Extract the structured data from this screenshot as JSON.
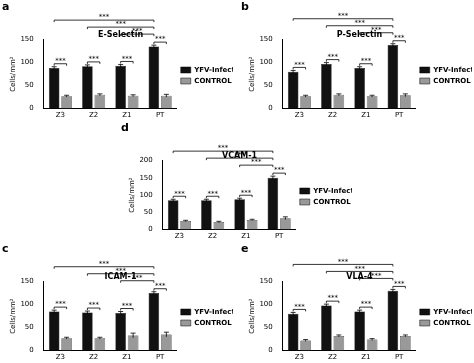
{
  "chart_data": [
    {
      "type": "bar",
      "panel": "a",
      "title": "E-Selectin",
      "y_label": "Cells/mm²",
      "categories": [
        "Z3",
        "Z2",
        "Z1",
        "PT"
      ],
      "series": [
        {
          "name": "YFV-Infected",
          "color": "#111111",
          "values": [
            88,
            92,
            93,
            135
          ],
          "errors": [
            3,
            3,
            3,
            3
          ]
        },
        {
          "name": "CONTROL",
          "color": "#999999",
          "values": [
            27,
            30,
            28,
            28
          ],
          "errors": [
            2,
            2,
            2,
            3
          ]
        }
      ],
      "ylim": [
        0,
        150
      ],
      "yticks": [
        0,
        50,
        100,
        150
      ],
      "legend": "right",
      "significance": [
        {
          "category": "Z3",
          "label": "***"
        },
        {
          "category": "Z2",
          "label": "***"
        },
        {
          "category": "Z1",
          "label": "***"
        },
        {
          "category": "PT",
          "label": "***"
        },
        {
          "from": "Z1",
          "to": "PT",
          "label": "***"
        },
        {
          "from": "Z2",
          "to": "PT",
          "label": "***"
        },
        {
          "from": "Z3",
          "to": "PT",
          "label": "***"
        }
      ]
    },
    {
      "type": "bar",
      "panel": "b",
      "title": "P-Selectin",
      "y_label": "Cells/mm²",
      "categories": [
        "Z3",
        "Z2",
        "Z1",
        "PT"
      ],
      "series": [
        {
          "name": "YFV-Infected",
          "color": "#111111",
          "values": [
            80,
            97,
            88,
            138
          ],
          "errors": [
            3,
            3,
            3,
            3
          ]
        },
        {
          "name": "CONTROL",
          "color": "#999999",
          "values": [
            27,
            30,
            27,
            29
          ],
          "errors": [
            2,
            2,
            2,
            3
          ]
        }
      ],
      "ylim": [
        0,
        150
      ],
      "yticks": [
        0,
        50,
        100,
        150
      ],
      "legend": "right",
      "significance": [
        {
          "category": "Z3",
          "label": "***"
        },
        {
          "category": "Z2",
          "label": "***"
        },
        {
          "category": "Z1",
          "label": "***"
        },
        {
          "category": "PT",
          "label": "***"
        },
        {
          "from": "Z1",
          "to": "PT",
          "label": "***"
        },
        {
          "from": "Z2",
          "to": "PT",
          "label": "***"
        },
        {
          "from": "Z3",
          "to": "PT",
          "label": "***"
        }
      ]
    },
    {
      "type": "bar",
      "panel": "c",
      "title": "ICAM-1",
      "y_label": "Cells/mm²",
      "categories": [
        "Z3",
        "Z2",
        "Z1",
        "PT"
      ],
      "series": [
        {
          "name": "YFV-Infected",
          "color": "#111111",
          "values": [
            85,
            83,
            82,
            125
          ],
          "errors": [
            3,
            3,
            3,
            3
          ]
        },
        {
          "name": "CONTROL",
          "color": "#999999",
          "values": [
            27,
            27,
            33,
            35
          ],
          "errors": [
            2,
            2,
            5,
            5
          ]
        }
      ],
      "ylim": [
        0,
        150
      ],
      "yticks": [
        0,
        50,
        100,
        150
      ],
      "legend": "right",
      "significance": [
        {
          "category": "Z3",
          "label": "***"
        },
        {
          "category": "Z2",
          "label": "***"
        },
        {
          "category": "Z1",
          "label": "***"
        },
        {
          "category": "PT",
          "label": "***"
        },
        {
          "from": "Z1",
          "to": "PT",
          "label": "***"
        },
        {
          "from": "Z2",
          "to": "PT",
          "label": "***"
        },
        {
          "from": "Z3",
          "to": "PT",
          "label": "***"
        }
      ]
    },
    {
      "type": "bar",
      "panel": "d",
      "title": "VCAM-1",
      "y_label": "Cells/mm²",
      "categories": [
        "Z3",
        "Z2",
        "Z1",
        "PT"
      ],
      "series": [
        {
          "name": "YFV-Infected",
          "color": "#111111",
          "values": [
            85,
            85,
            88,
            150
          ],
          "errors": [
            3,
            3,
            3,
            5
          ]
        },
        {
          "name": "CONTROL",
          "color": "#999999",
          "values": [
            25,
            22,
            28,
            33
          ],
          "errors": [
            2,
            2,
            2,
            4
          ]
        }
      ],
      "ylim": [
        0,
        200
      ],
      "yticks": [
        0,
        50,
        100,
        150,
        200
      ],
      "legend": "right",
      "significance": [
        {
          "category": "Z3",
          "label": "***"
        },
        {
          "category": "Z2",
          "label": "***"
        },
        {
          "category": "Z1",
          "label": "***"
        },
        {
          "category": "PT",
          "label": "***"
        },
        {
          "from": "Z1",
          "to": "PT",
          "label": "***"
        },
        {
          "from": "Z2",
          "to": "PT",
          "label": "***"
        },
        {
          "from": "Z3",
          "to": "PT",
          "label": "***"
        }
      ]
    },
    {
      "type": "bar",
      "panel": "e",
      "title": "VLA-4",
      "y_label": "Cells/mm²",
      "categories": [
        "Z3",
        "Z2",
        "Z1",
        "PT"
      ],
      "series": [
        {
          "name": "YFV-Infected",
          "color": "#111111",
          "values": [
            80,
            98,
            85,
            130
          ],
          "errors": [
            3,
            3,
            3,
            3
          ]
        },
        {
          "name": "CONTROL",
          "color": "#999999",
          "values": [
            22,
            32,
            24,
            32
          ],
          "errors": [
            2,
            2,
            2,
            2
          ]
        }
      ],
      "ylim": [
        0,
        150
      ],
      "yticks": [
        0,
        50,
        100,
        150
      ],
      "legend": "right",
      "significance": [
        {
          "category": "Z3",
          "label": "***"
        },
        {
          "category": "Z2",
          "label": "***"
        },
        {
          "category": "Z1",
          "label": "***"
        },
        {
          "category": "PT",
          "label": "***"
        },
        {
          "from": "Z1",
          "to": "PT",
          "label": "***"
        },
        {
          "from": "Z2",
          "to": "PT",
          "label": "***"
        },
        {
          "from": "Z3",
          "to": "PT",
          "label": "***"
        }
      ]
    }
  ]
}
